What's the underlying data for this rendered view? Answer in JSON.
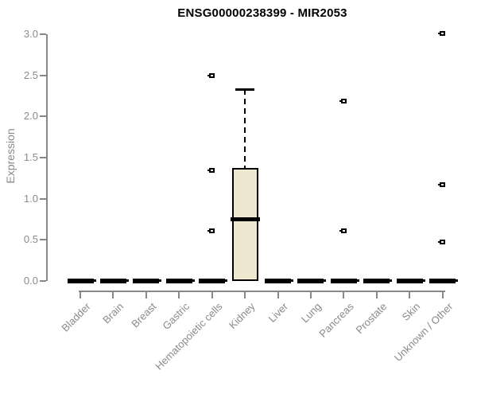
{
  "chart_data": {
    "type": "boxplot",
    "title": "ENSG00000238399 - MIR2053",
    "ylabel": "Expression",
    "xlabel": "",
    "ylim": [
      0,
      3
    ],
    "grid": false,
    "legend": "none",
    "yticks": [
      0,
      0.5,
      1,
      1.5,
      2,
      2.5,
      3
    ],
    "ytick_labels": [
      "0.0",
      "0.5",
      "1.0",
      "1.5",
      "2.0",
      "2.5",
      "3.0"
    ],
    "categories": [
      "Bladder",
      "Brain",
      "Breast",
      "Gastric",
      "Hematopoietic cells",
      "Kidney",
      "Liver",
      "Lung",
      "Pancreas",
      "Prostate",
      "Skin",
      "Unknown / Other"
    ],
    "series": [
      {
        "name": "Bladder",
        "stats": {
          "low": 0,
          "q1": 0,
          "median": 0,
          "q3": 0,
          "high": 0
        },
        "outliers": []
      },
      {
        "name": "Brain",
        "stats": {
          "low": 0,
          "q1": 0,
          "median": 0,
          "q3": 0,
          "high": 0
        },
        "outliers": []
      },
      {
        "name": "Breast",
        "stats": {
          "low": 0,
          "q1": 0,
          "median": 0,
          "q3": 0,
          "high": 0
        },
        "outliers": []
      },
      {
        "name": "Gastric",
        "stats": {
          "low": 0,
          "q1": 0,
          "median": 0,
          "q3": 0,
          "high": 0
        },
        "outliers": []
      },
      {
        "name": "Hematopoietic cells",
        "stats": {
          "low": 0,
          "q1": 0,
          "median": 0,
          "q3": 0,
          "high": 0
        },
        "outliers": [
          2.5,
          1.34,
          0.61
        ]
      },
      {
        "name": "Kidney",
        "stats": {
          "low": 0,
          "q1": 0,
          "median": 0.75,
          "q3": 1.37,
          "high": 2.33
        },
        "outliers": []
      },
      {
        "name": "Liver",
        "stats": {
          "low": 0,
          "q1": 0,
          "median": 0,
          "q3": 0,
          "high": 0
        },
        "outliers": []
      },
      {
        "name": "Lung",
        "stats": {
          "low": 0,
          "q1": 0,
          "median": 0,
          "q3": 0,
          "high": 0
        },
        "outliers": []
      },
      {
        "name": "Pancreas",
        "stats": {
          "low": 0,
          "q1": 0,
          "median": 0,
          "q3": 0,
          "high": 0
        },
        "outliers": [
          2.19,
          0.61
        ]
      },
      {
        "name": "Prostate",
        "stats": {
          "low": 0,
          "q1": 0,
          "median": 0,
          "q3": 0,
          "high": 0
        },
        "outliers": []
      },
      {
        "name": "Skin",
        "stats": {
          "low": 0,
          "q1": 0,
          "median": 0,
          "q3": 0,
          "high": 0
        },
        "outliers": []
      },
      {
        "name": "Unknown / Other",
        "stats": {
          "low": 0,
          "q1": 0,
          "median": 0,
          "q3": 0,
          "high": 0
        },
        "outliers": [
          3.01,
          1.17,
          0.47
        ]
      }
    ],
    "colors": {
      "background": "#ffffff",
      "title_text": "#000000",
      "axis_line": "#888888",
      "tick_text": "#8a8a8a",
      "box_fill": "#ede8cf",
      "box_border": "#000000",
      "outlier": "#000000"
    }
  }
}
